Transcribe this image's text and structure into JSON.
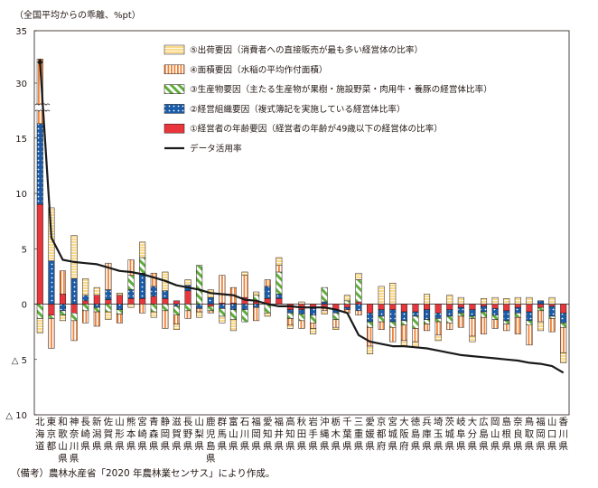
{
  "chart_data": {
    "type": "bar",
    "stacked": true,
    "unit_label": "（全国平均からの乖離、%pt）",
    "y_ticks": [
      {
        "value": 35,
        "label": "35"
      },
      {
        "value": 30,
        "label": "30"
      },
      {
        "value": 15,
        "label": "15"
      },
      {
        "value": 10,
        "label": "10"
      },
      {
        "value": 5,
        "label": "5"
      },
      {
        "value": 0,
        "label": "0"
      },
      {
        "value": -5,
        "label": "△ 5"
      },
      {
        "value": -10,
        "label": "△ 10"
      }
    ],
    "ylim": [
      -10,
      35
    ],
    "axis_break": [
      17.5,
      27.5
    ],
    "categories": [
      "北海道",
      "東京都",
      "和歌山県",
      "神奈川県",
      "長崎県",
      "新潟県",
      "佐賀県",
      "山形県",
      "熊本県",
      "宮崎県",
      "青森県",
      "静岡県",
      "滋賀県",
      "長野県",
      "山梨県",
      "鹿児島県",
      "群馬県",
      "富山県",
      "石川県",
      "福岡県",
      "愛知県",
      "福井県",
      "高知県",
      "秋田県",
      "岩手県",
      "沖縄県",
      "栃木県",
      "千葉県",
      "三重県",
      "愛媛県",
      "京都府",
      "宮城県",
      "大阪府",
      "徳島県",
      "兵庫県",
      "埼玉県",
      "茨城県",
      "岐阜県",
      "大分県",
      "広島県",
      "岡山県",
      "島根県",
      "奈良県",
      "鳥取県",
      "福岡県",
      "山口県",
      "香川県"
    ],
    "series": [
      {
        "name": "①経営者の年齢要因（経営者の年齢が49歳以下の経営体の比率）",
        "color": "#e8363c",
        "pattern": "solid",
        "values": [
          9,
          -1,
          0.9,
          -0.8,
          0.3,
          0.8,
          0.4,
          0.8,
          0.5,
          0.5,
          0.7,
          0.5,
          0.3,
          1.2,
          0,
          -0.2,
          0.1,
          0.1,
          0.6,
          0.2,
          0.5,
          0.5,
          -0.5,
          -0.5,
          -0.4,
          -0.4,
          -0.5,
          -0.3,
          0.2,
          -0.8,
          -0.5,
          -0.5,
          -0.7,
          -0.7,
          -0.5,
          -0.8,
          -0.5,
          -0.3,
          -0.5,
          -0.2,
          -0.4,
          -0.6,
          -0.3,
          -0.7,
          -0.3,
          -0.2,
          -0.8
        ]
      },
      {
        "name": "②経営組織要因（複式簿記を実施している経営体比率）",
        "color": "#1a5ca8",
        "pattern": "dots",
        "values": [
          7.3,
          3.9,
          -0.6,
          2.3,
          0.5,
          -0.3,
          0.9,
          -0.5,
          0.8,
          2.3,
          0.9,
          0.7,
          -0.2,
          0.5,
          -0.4,
          0.6,
          -0.4,
          -0.5,
          -0.5,
          -0.3,
          1.1,
          0.4,
          -0.3,
          -0.4,
          -0.6,
          0.2,
          -0.3,
          -0.2,
          -0.6,
          -0.8,
          -0.6,
          -1.1,
          -0.8,
          -0.4,
          -0.9,
          -0.5,
          -0.6,
          -0.5,
          -0.6,
          -0.5,
          -0.6,
          -0.9,
          -0.5,
          -0.8,
          0.3,
          -0.9,
          -0.9
        ]
      },
      {
        "name": "③生産物要因（主たる生産物が果樹・施設野菜・肉用牛・養豚の経営体比率）",
        "color": "#5fae3b",
        "pattern": "stripes",
        "values": [
          -1.3,
          -0.3,
          -0.4,
          -0.7,
          -0.6,
          -0.4,
          -0.7,
          -0.4,
          1.3,
          1.4,
          -0.7,
          -0.6,
          -0.8,
          -0.6,
          3.5,
          -0.4,
          -0.7,
          -0.9,
          -1.1,
          0.6,
          -0.8,
          2,
          -0.5,
          -0.6,
          -0.7,
          1.3,
          -0.6,
          0.3,
          2,
          -0.5,
          -0.5,
          -0.5,
          -0.4,
          -1.1,
          -0.4,
          -0.3,
          -0.6,
          -0.3,
          -0.2,
          -0.5,
          -0.4,
          -0.3,
          -0.4,
          -0.4,
          -0.3,
          -0.2,
          -0.4
        ]
      },
      {
        "name": "④面積要因（水稲の平均作付面積）",
        "color": "#f08236",
        "pattern": "vlines",
        "values": [
          16,
          -2.7,
          2.1,
          -1.8,
          -1.1,
          -1.3,
          2.4,
          -0.8,
          1.4,
          -0.8,
          1.2,
          -1.6,
          -0.8,
          -0.7,
          -0.3,
          -0.2,
          2.5,
          1.4,
          2,
          -1.2,
          0.6,
          0.6,
          -0.6,
          -0.7,
          -0.5,
          -0.2,
          -0.7,
          -0.3,
          -0.4,
          -1.7,
          -0.7,
          -1.3,
          -1.4,
          -1.2,
          -0.6,
          -1.2,
          -0.6,
          -1,
          -1.6,
          -1.5,
          -0.8,
          -0.6,
          -1.5,
          -1.8,
          -1,
          -1.2,
          -2.3
        ]
      },
      {
        "name": "⑤出荷要因（消費者への直接販売が最も多い経営体の比率）",
        "color": "#fbd98a",
        "pattern": "grid",
        "values": [
          -1.3,
          4.8,
          -0.5,
          3.9,
          1.5,
          0.7,
          -0.7,
          0.2,
          -0.3,
          1.4,
          -0.5,
          1.7,
          -0.5,
          0.5,
          -0.5,
          0.7,
          -0.6,
          -1,
          0.3,
          0.3,
          -0.3,
          0.7,
          -0.3,
          0.2,
          -0.5,
          -0.3,
          -0.2,
          0.5,
          0.6,
          -0.7,
          1.6,
          1.9,
          -0.5,
          -0.5,
          0.9,
          -0.5,
          0.8,
          0.6,
          -0.5,
          0.5,
          0.6,
          0.5,
          0.6,
          0.6,
          -0.8,
          0.6,
          -0.9
        ]
      }
    ],
    "line": {
      "name": "データ活用率",
      "color": "#1a1a1a",
      "values": [
        32,
        6,
        4,
        3.8,
        3.7,
        3.6,
        3.3,
        3,
        2.9,
        2.7,
        2.4,
        2.1,
        1.7,
        1.5,
        1.3,
        1,
        0.9,
        0.8,
        0.4,
        0.3,
        0,
        -0.2,
        -0.2,
        -0.3,
        -0.3,
        -0.3,
        -0.5,
        -0.8,
        -2.8,
        -3.4,
        -3.6,
        -3.8,
        -3.8,
        -3.9,
        -4,
        -4.2,
        -4.4,
        -4.6,
        -4.7,
        -4.8,
        -4.9,
        -5,
        -5.1,
        -5.3,
        -5.4,
        -5.6,
        -6.2
      ]
    },
    "legend_order": [
      4,
      3,
      2,
      1,
      0,
      "line"
    ],
    "legend_position": "top-right",
    "xlabel": "",
    "ylabel": ""
  },
  "footnote": "（備考）農林水産省「2020 年農林業センサス」により作成。"
}
